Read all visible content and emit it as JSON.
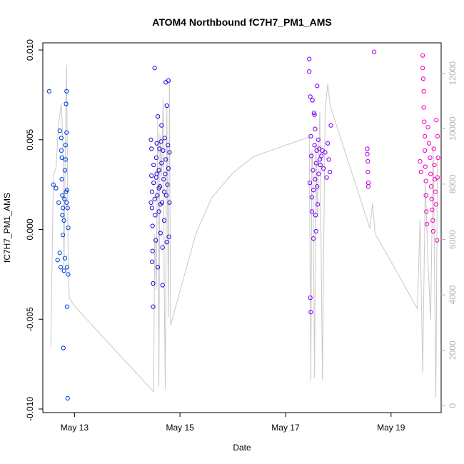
{
  "chart_data": {
    "type": "scatter",
    "title": "ATOM4 Northbound fC7H7_PM1_AMS",
    "xlabel": "Date",
    "ylabel": "fC7H7_PM1_AMS",
    "xlim_days": [
      12.4,
      19.95
    ],
    "ylim": [
      -0.0102,
      0.0104
    ],
    "y2lim": [
      -250,
      13100
    ],
    "x_ticks": [
      {
        "value": 13,
        "label": "May 13"
      },
      {
        "value": 15,
        "label": "May 15"
      },
      {
        "value": 17,
        "label": "May 17"
      },
      {
        "value": 19,
        "label": "May 19"
      }
    ],
    "y_ticks": [
      {
        "value": -0.01,
        "label": "-0.010"
      },
      {
        "value": -0.005,
        "label": "-0.005"
      },
      {
        "value": 0.0,
        "label": "0.000"
      },
      {
        "value": 0.005,
        "label": "0.005"
      },
      {
        "value": 0.01,
        "label": "0.010"
      }
    ],
    "y2_ticks": [
      {
        "value": 0,
        "label": "0"
      },
      {
        "value": 2000,
        "label": "2000"
      },
      {
        "value": 4000,
        "label": "4000"
      },
      {
        "value": 6000,
        "label": "6000"
      },
      {
        "value": 8000,
        "label": "8000"
      },
      {
        "value": 10000,
        "label": "10000"
      },
      {
        "value": 12000,
        "label": "12000"
      }
    ],
    "colors": {
      "line": "#c8c8c8",
      "flight1": "#0040e0",
      "flight2": "#2a10d8",
      "flight3": "#8000ff",
      "flight4": "#c000e8",
      "flight5": "#ff00c8"
    },
    "series": [
      {
        "name": "altitude",
        "kind": "line",
        "axis": "right",
        "points": [
          [
            12.55,
            2100
          ],
          [
            12.6,
            8300
          ],
          [
            12.65,
            8600
          ],
          [
            12.7,
            10200
          ],
          [
            12.75,
            10900
          ],
          [
            12.78,
            9500
          ],
          [
            12.8,
            5000
          ],
          [
            12.82,
            8200
          ],
          [
            12.85,
            12300
          ],
          [
            12.88,
            5200
          ],
          [
            12.9,
            3900
          ],
          [
            13.0,
            3600
          ],
          [
            14.5,
            500
          ],
          [
            14.52,
            6200
          ],
          [
            14.55,
            4200
          ],
          [
            14.58,
            10500
          ],
          [
            14.6,
            700
          ],
          [
            14.62,
            9800
          ],
          [
            14.65,
            8300
          ],
          [
            14.68,
            11100
          ],
          [
            14.7,
            4500
          ],
          [
            14.72,
            600
          ],
          [
            14.75,
            10800
          ],
          [
            14.78,
            3200
          ],
          [
            14.8,
            11800
          ],
          [
            14.82,
            2900
          ],
          [
            15.3,
            6200
          ],
          [
            15.6,
            7500
          ],
          [
            16.0,
            8400
          ],
          [
            16.4,
            9000
          ],
          [
            17.45,
            9700
          ],
          [
            17.48,
            900
          ],
          [
            17.5,
            9200
          ],
          [
            17.52,
            8500
          ],
          [
            17.55,
            1000
          ],
          [
            17.58,
            9500
          ],
          [
            17.6,
            6800
          ],
          [
            17.65,
            10600
          ],
          [
            17.7,
            900
          ],
          [
            17.75,
            10700
          ],
          [
            17.8,
            11600
          ],
          [
            17.85,
            10800
          ],
          [
            18.6,
            6400
          ],
          [
            18.65,
            7300
          ],
          [
            18.7,
            6200
          ],
          [
            19.0,
            5200
          ],
          [
            19.5,
            3500
          ],
          [
            19.55,
            6700
          ],
          [
            19.6,
            1200
          ],
          [
            19.65,
            8000
          ],
          [
            19.7,
            5200
          ],
          [
            19.75,
            3100
          ],
          [
            19.8,
            9300
          ],
          [
            19.85,
            300
          ],
          [
            19.88,
            9000
          ]
        ]
      },
      {
        "name": "flight1",
        "kind": "points",
        "axis": "left",
        "color_key": "flight1",
        "points": [
          [
            12.52,
            0.0077
          ],
          [
            12.6,
            0.0025
          ],
          [
            12.65,
            0.0023
          ],
          [
            12.68,
            -0.0017
          ],
          [
            12.7,
            0.0015
          ],
          [
            12.72,
            0.0055
          ],
          [
            12.72,
            -0.0013
          ],
          [
            12.74,
            -0.0021
          ],
          [
            12.75,
            0.0044
          ],
          [
            12.75,
            0.0051
          ],
          [
            12.76,
            0.004
          ],
          [
            12.76,
            0.0028
          ],
          [
            12.77,
            0.0019
          ],
          [
            12.77,
            0.0008
          ],
          [
            12.78,
            -0.0003
          ],
          [
            12.78,
            0.0012
          ],
          [
            12.79,
            -0.0066
          ],
          [
            12.8,
            -0.0023
          ],
          [
            12.8,
            0.0005
          ],
          [
            12.81,
            0.0017
          ],
          [
            12.82,
            0.0033
          ],
          [
            12.82,
            -0.0016
          ],
          [
            12.83,
            0.0039
          ],
          [
            12.84,
            0.007
          ],
          [
            12.85,
            0.0077
          ],
          [
            12.85,
            0.0054
          ],
          [
            12.86,
            0.0022
          ],
          [
            12.86,
            -0.0043
          ],
          [
            12.87,
            0.0012
          ],
          [
            12.87,
            -0.0094
          ],
          [
            12.88,
            -0.0025
          ],
          [
            12.88,
            0.0001
          ],
          [
            12.83,
            0.0047
          ],
          [
            12.84,
            0.0021
          ],
          [
            12.86,
            -0.0021
          ],
          [
            12.85,
            0.0015
          ]
        ]
      },
      {
        "name": "flight2",
        "kind": "points",
        "axis": "left",
        "color_key": "flight2",
        "points": [
          [
            14.45,
            0.005
          ],
          [
            14.46,
            0.0045
          ],
          [
            14.46,
            0.003
          ],
          [
            14.47,
            0.0021
          ],
          [
            14.47,
            0.0012
          ],
          [
            14.48,
            0.0002
          ],
          [
            14.48,
            -0.0012
          ],
          [
            14.49,
            -0.003
          ],
          [
            14.49,
            -0.0043
          ],
          [
            14.5,
            0.0036
          ],
          [
            14.5,
            0.0026
          ],
          [
            14.52,
            0.009
          ],
          [
            14.52,
            0.0017
          ],
          [
            14.53,
            0.0008
          ],
          [
            14.54,
            -0.0006
          ],
          [
            14.55,
            0.004
          ],
          [
            14.55,
            0.0029
          ],
          [
            14.56,
            0.0048
          ],
          [
            14.57,
            0.0019
          ],
          [
            14.58,
            -0.0021
          ],
          [
            14.58,
            0.0063
          ],
          [
            14.6,
            0.0033
          ],
          [
            14.6,
            0.001
          ],
          [
            14.61,
            0.0045
          ],
          [
            14.62,
            0.0024
          ],
          [
            14.63,
            -0.0002
          ],
          [
            14.63,
            0.0014
          ],
          [
            14.65,
            0.0058
          ],
          [
            14.65,
            0.0037
          ],
          [
            14.66,
            0.0015
          ],
          [
            14.67,
            -0.001
          ],
          [
            14.67,
            -0.0031
          ],
          [
            14.68,
            0.0044
          ],
          [
            14.69,
            0.0028
          ],
          [
            14.7,
            0.0021
          ],
          [
            14.7,
            0.0005
          ],
          [
            14.71,
            0.0051
          ],
          [
            14.72,
            0.0031
          ],
          [
            14.73,
            0.0082
          ],
          [
            14.73,
            0.0039
          ],
          [
            14.74,
            0.0019
          ],
          [
            14.75,
            -0.0007
          ],
          [
            14.75,
            0.0069
          ],
          [
            14.76,
            0.0025
          ],
          [
            14.77,
            0.0047
          ],
          [
            14.78,
            0.0083
          ],
          [
            14.78,
            0.0034
          ],
          [
            14.79,
            -0.0004
          ],
          [
            14.8,
            0.0015
          ],
          [
            14.8,
            0.0043
          ],
          [
            14.45,
            0.0015
          ],
          [
            14.47,
            -0.0018
          ],
          [
            14.56,
            0.0031
          ],
          [
            14.6,
            0.0023
          ],
          [
            14.64,
            0.0049
          ]
        ]
      },
      {
        "name": "flight3",
        "kind": "points",
        "axis": "left",
        "color_key": "flight3",
        "points": [
          [
            17.45,
            0.0095
          ],
          [
            17.45,
            0.0088
          ],
          [
            17.46,
            0.0026
          ],
          [
            17.47,
            -0.0038
          ],
          [
            17.48,
            -0.0046
          ],
          [
            17.48,
            0.0052
          ],
          [
            17.49,
            0.0041
          ],
          [
            17.5,
            0.0018
          ],
          [
            17.5,
            0.001
          ],
          [
            17.51,
            0.0072
          ],
          [
            17.52,
            0.0033
          ],
          [
            17.53,
            0.0022
          ],
          [
            17.53,
            -0.0005
          ],
          [
            17.54,
            0.0065
          ],
          [
            17.55,
            0.0047
          ],
          [
            17.56,
            0.0056
          ],
          [
            17.56,
            0.0028
          ],
          [
            17.57,
            0.0008
          ],
          [
            17.58,
            0.0037
          ],
          [
            17.58,
            -0.0001
          ],
          [
            17.59,
            0.0044
          ],
          [
            17.6,
            0.008
          ],
          [
            17.6,
            0.0024
          ],
          [
            17.61,
            0.0014
          ],
          [
            17.62,
            0.005
          ],
          [
            17.63,
            0.0031
          ],
          [
            17.64,
            0.0045
          ],
          [
            17.65,
            0.0039
          ],
          [
            17.66,
            0.0036
          ],
          [
            17.68,
            0.0041
          ],
          [
            17.7,
            0.0044
          ],
          [
            17.72,
            0.0034
          ],
          [
            17.75,
            0.0043
          ],
          [
            17.78,
            0.0029
          ],
          [
            17.8,
            0.0048
          ],
          [
            17.82,
            0.0039
          ],
          [
            17.84,
            0.0032
          ],
          [
            17.86,
            0.0058
          ],
          [
            17.47,
            0.0074
          ],
          [
            17.55,
            0.0064
          ]
        ]
      },
      {
        "name": "flight4",
        "kind": "points",
        "axis": "left",
        "color_key": "flight4",
        "points": [
          [
            18.55,
            0.0045
          ],
          [
            18.55,
            0.0042
          ],
          [
            18.56,
            0.0038
          ],
          [
            18.56,
            0.0032
          ],
          [
            18.57,
            0.0026
          ],
          [
            18.57,
            0.0024
          ],
          [
            18.68,
            0.0099
          ]
        ]
      },
      {
        "name": "flight5",
        "kind": "points",
        "axis": "left",
        "color_key": "flight5",
        "points": [
          [
            19.55,
            0.0038
          ],
          [
            19.57,
            0.0032
          ],
          [
            19.6,
            0.0097
          ],
          [
            19.6,
            0.009
          ],
          [
            19.61,
            0.0084
          ],
          [
            19.62,
            0.0077
          ],
          [
            19.62,
            0.0068
          ],
          [
            19.63,
            0.006
          ],
          [
            19.64,
            0.0052
          ],
          [
            19.64,
            0.0044
          ],
          [
            19.65,
            0.0035
          ],
          [
            19.66,
            0.0027
          ],
          [
            19.66,
            0.0019
          ],
          [
            19.67,
            0.001
          ],
          [
            19.68,
            0.0003
          ],
          [
            19.7,
            0.0057
          ],
          [
            19.72,
            0.0048
          ],
          [
            19.74,
            0.004
          ],
          [
            19.75,
            0.0031
          ],
          [
            19.76,
            0.0024
          ],
          [
            19.77,
            0.0017
          ],
          [
            19.78,
            0.0011
          ],
          [
            19.79,
            0.0005
          ],
          [
            19.8,
            -0.0001
          ],
          [
            19.81,
            0.0045
          ],
          [
            19.82,
            0.0036
          ],
          [
            19.83,
            0.0028
          ],
          [
            19.84,
            0.0021
          ],
          [
            19.85,
            0.0014
          ],
          [
            19.86,
            0.0061
          ],
          [
            19.87,
            -0.0006
          ],
          [
            19.88,
            0.0052
          ],
          [
            19.88,
            0.0029
          ],
          [
            19.89,
            0.004
          ]
        ]
      }
    ]
  }
}
